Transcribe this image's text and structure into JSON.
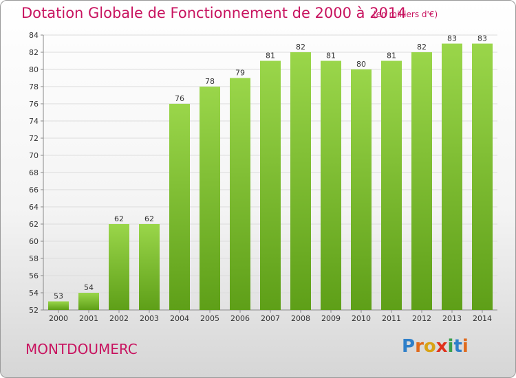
{
  "chart_data": {
    "type": "bar",
    "title": "Dotation Globale de Fonctionnement de 2000 à 2014",
    "subtitle": "(en milliers d'€)",
    "categories": [
      "2000",
      "2001",
      "2002",
      "2003",
      "2004",
      "2005",
      "2006",
      "2007",
      "2008",
      "2009",
      "2010",
      "2011",
      "2012",
      "2013",
      "2014"
    ],
    "values": [
      53,
      54,
      62,
      62,
      76,
      78,
      79,
      81,
      82,
      81,
      80,
      81,
      82,
      83,
      83
    ],
    "ylim": [
      52,
      84
    ],
    "yticks": [
      52,
      54,
      56,
      58,
      60,
      62,
      64,
      66,
      68,
      70,
      72,
      74,
      76,
      78,
      80,
      82,
      84
    ],
    "xlabel": "",
    "ylabel": "",
    "grid": true,
    "bar_color": "#7dc12f"
  },
  "commune": "MONTDOUMERC",
  "logo": {
    "letters": [
      "P",
      "r",
      "o",
      "x",
      "i",
      "t",
      "i"
    ]
  }
}
